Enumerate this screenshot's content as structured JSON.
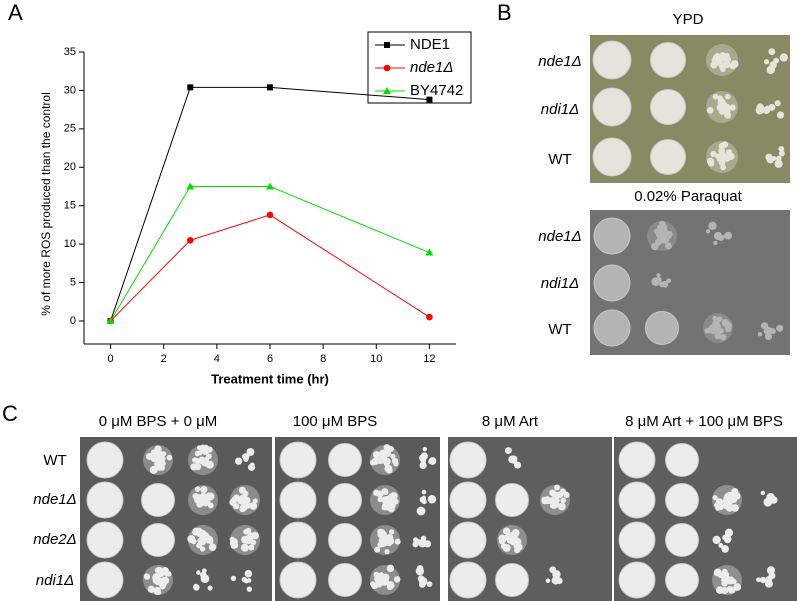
{
  "chart_data": {
    "type": "line",
    "panel_label": "A",
    "x_label": "Treatment time (hr)",
    "y_label": "% of more ROS produced than the control",
    "x": [
      0,
      3,
      6,
      12
    ],
    "series": [
      {
        "name": "NDE1",
        "color": "#000000",
        "marker": "square",
        "values": [
          0,
          30.4,
          30.4,
          28.8
        ]
      },
      {
        "name": "nde1Δ",
        "color": "#ff0000",
        "marker": "circle",
        "values": [
          0,
          10.5,
          13.8,
          0.5
        ]
      },
      {
        "name": "BY4742",
        "color": "#00e000",
        "marker": "triangle",
        "values": [
          0,
          17.5,
          17.5,
          8.9
        ]
      }
    ],
    "xlim": [
      -1,
      13
    ],
    "ylim": [
      -3,
      35
    ],
    "xticks": [
      0,
      2,
      4,
      6,
      8,
      10,
      12
    ],
    "yticks": [
      0,
      5,
      10,
      15,
      20,
      25,
      30,
      35
    ],
    "legend": "upper right"
  },
  "panel_b": {
    "label": "B",
    "blocks": [
      {
        "condition": "YPD",
        "strains": [
          "nde1Δ",
          "ndi1Δ",
          "WT"
        ]
      },
      {
        "condition": "0.02% Paraquat",
        "strains": [
          "nde1Δ",
          "ndi1Δ",
          "WT"
        ]
      }
    ]
  },
  "panel_c": {
    "label": "C",
    "conditions": [
      "0 μM BPS + 0 μM",
      "100 μM BPS",
      "8 μM Art",
      "8 μM Art + 100 μM BPS"
    ],
    "strains": [
      "WT",
      "nde1Δ",
      "nde2Δ",
      "ndi1Δ"
    ]
  }
}
